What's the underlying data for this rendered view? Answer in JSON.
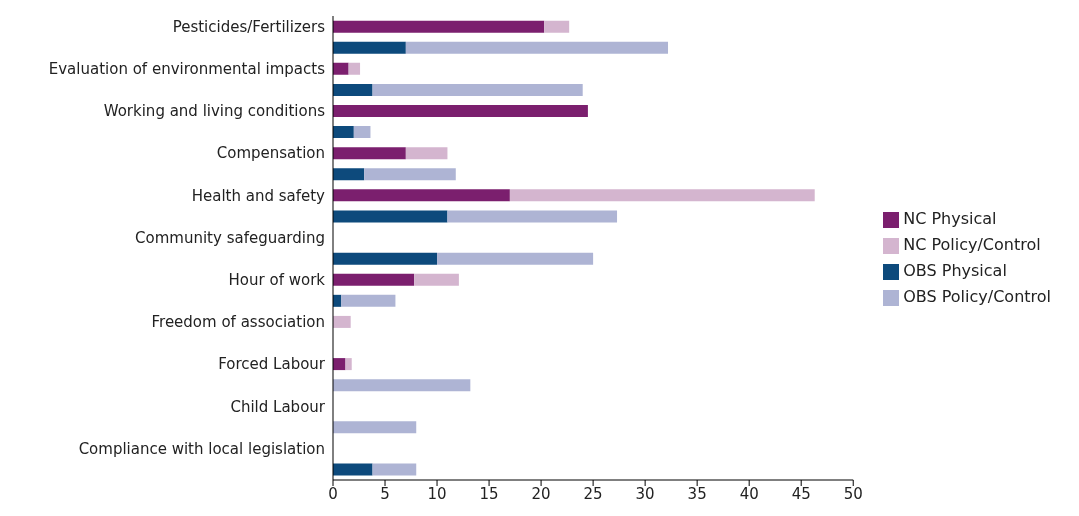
{
  "chart_data": {
    "type": "bar",
    "orientation": "horizontal",
    "stacked": true,
    "legend": "right",
    "categories": [
      "Pesticides/Fertilizers",
      null,
      "Evaluation of environmental impacts",
      null,
      "Working and living conditions",
      null,
      "Compensation",
      null,
      "Health and safety",
      null,
      "Community safeguarding",
      null,
      "Hour of work",
      null,
      "Freedom of association",
      null,
      "Forced Labour",
      null,
      "Child Labour",
      null,
      "Compliance with local legislation",
      null
    ],
    "series": [
      {
        "name": "NC Physical",
        "color": "#7b1f6e",
        "values": [
          20.3,
          null,
          1.5,
          null,
          24.5,
          null,
          7,
          null,
          17,
          null,
          null,
          null,
          7.8,
          null,
          0,
          null,
          1.2,
          null,
          null,
          null,
          null,
          null
        ]
      },
      {
        "name": "NC Policy/Control",
        "color": "#d4b5cf",
        "values": [
          2.4,
          null,
          1.1,
          null,
          0,
          null,
          4,
          null,
          29.3,
          null,
          null,
          null,
          4.3,
          null,
          1.7,
          null,
          0.6,
          null,
          null,
          null,
          null,
          null
        ]
      },
      {
        "name": "OBS Physical",
        "color": "#0d4a7c",
        "values": [
          null,
          7,
          null,
          3.8,
          null,
          2,
          null,
          3,
          null,
          11,
          null,
          10,
          null,
          0.8,
          null,
          null,
          null,
          0,
          null,
          0,
          null,
          3.8
        ]
      },
      {
        "name": "OBS Policy/Control",
        "color": "#aeb4d4",
        "values": [
          null,
          25.2,
          null,
          20.2,
          null,
          1.6,
          null,
          8.8,
          null,
          16.3,
          null,
          15,
          null,
          5.2,
          null,
          null,
          null,
          13.2,
          null,
          8,
          null,
          4.2
        ]
      }
    ],
    "xlim": [
      0,
      50
    ],
    "xticks": [
      0,
      5,
      10,
      15,
      20,
      25,
      30,
      35,
      40,
      45,
      50
    ]
  }
}
